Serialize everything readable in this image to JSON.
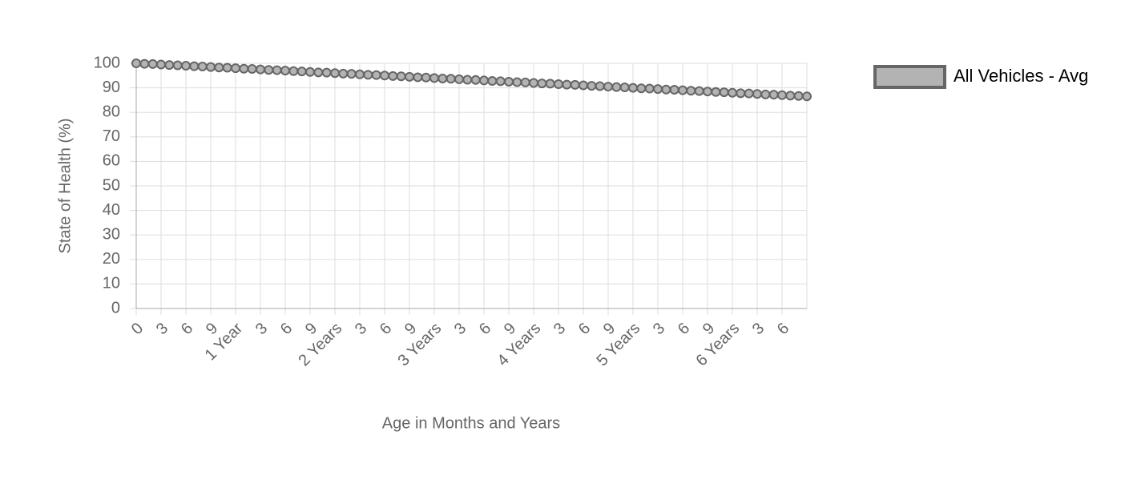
{
  "chart_data": {
    "type": "line",
    "x_label": "Age in Months and Years",
    "y_label": "State of Health (%)",
    "categories": [
      "0",
      null,
      null,
      "3",
      null,
      null,
      "6",
      null,
      null,
      "9",
      null,
      null,
      "1 Year",
      null,
      null,
      "3",
      null,
      null,
      "6",
      null,
      null,
      "9",
      null,
      null,
      "2 Years",
      null,
      null,
      "3",
      null,
      null,
      "6",
      null,
      null,
      "9",
      null,
      null,
      "3 Years",
      null,
      null,
      "3",
      null,
      null,
      "6",
      null,
      null,
      "9",
      null,
      null,
      "4 Years",
      null,
      null,
      "3",
      null,
      null,
      "6",
      null,
      null,
      "9",
      null,
      null,
      "5 Years",
      null,
      null,
      "3",
      null,
      null,
      "6",
      null,
      null,
      "9",
      null,
      null,
      "6 Years",
      null,
      null,
      "3",
      null,
      null,
      "6",
      null,
      null,
      null
    ],
    "series": [
      {
        "name": "All Vehicles - Avg",
        "color": "#666666",
        "fill": "#b3b3b3",
        "values": [
          100,
          99.8,
          99.7,
          99.5,
          99.3,
          99.2,
          99,
          98.8,
          98.7,
          98.5,
          98.3,
          98.2,
          98,
          97.8,
          97.7,
          97.5,
          97.3,
          97.2,
          97,
          96.8,
          96.7,
          96.5,
          96.3,
          96.2,
          96,
          95.8,
          95.7,
          95.5,
          95.3,
          95.2,
          95,
          94.8,
          94.7,
          94.5,
          94.3,
          94.2,
          94,
          93.8,
          93.7,
          93.5,
          93.3,
          93.2,
          93,
          92.8,
          92.7,
          92.5,
          92.3,
          92.2,
          92,
          91.8,
          91.7,
          91.5,
          91.3,
          91.2,
          91,
          90.8,
          90.7,
          90.5,
          90.3,
          90.2,
          90,
          89.8,
          89.7,
          89.5,
          89.3,
          89.2,
          89,
          88.8,
          88.7,
          88.5,
          88.3,
          88.2,
          88,
          87.8,
          87.7,
          87.5,
          87.3,
          87.2,
          87,
          86.8,
          86.7,
          86.5
        ]
      }
    ],
    "ylim": [
      0,
      100
    ],
    "yticks": [
      0,
      10,
      20,
      30,
      40,
      50,
      60,
      70,
      80,
      90,
      100
    ],
    "grid": true,
    "legend": "right"
  }
}
